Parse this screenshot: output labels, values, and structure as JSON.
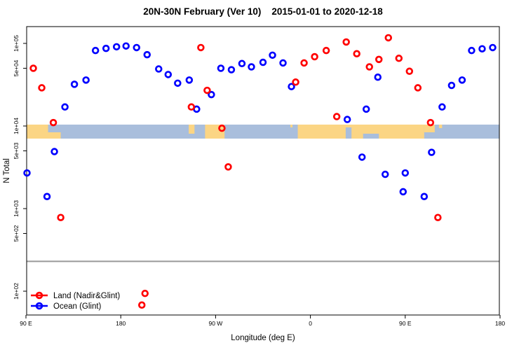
{
  "title": "20N-30N February (Ver 10)    2015-01-01 to 2020-12-18",
  "chart_data": {
    "type": "scatter",
    "title": "20N-30N February (Ver 10)    2015-01-01 to 2020-12-18",
    "xlabel": "Longitude (deg E)",
    "ylabel": "N Total",
    "x_axis": {
      "range": [
        90,
        540
      ],
      "ticks": [
        {
          "pos": 90,
          "label": "90 E"
        },
        {
          "pos": 180,
          "label": "180"
        },
        {
          "pos": 270,
          "label": "90 W"
        },
        {
          "pos": 360,
          "label": "0"
        },
        {
          "pos": 450,
          "label": "90 E"
        },
        {
          "pos": 540,
          "label": "180"
        }
      ]
    },
    "y_axis": {
      "scale": "log",
      "range": [
        52,
        160000
      ],
      "ticks": [
        {
          "value": 100000,
          "label": "1e+05"
        },
        {
          "value": 50000,
          "label": "5e+04"
        },
        {
          "value": 10000,
          "label": "1e+04"
        },
        {
          "value": 5000,
          "label": "5e+03"
        },
        {
          "value": 1000,
          "label": "1e+03"
        },
        {
          "value": 500,
          "label": "5e+02"
        },
        {
          "value": 100,
          "label": "1e+02"
        }
      ]
    },
    "grid": false,
    "legend_position": "bottom-left",
    "series": [
      {
        "name": "Land (Nadir&Glint)",
        "color": "#ff0000",
        "points": [
          [
            97,
            50000
          ],
          [
            105,
            29000
          ],
          [
            116,
            11000
          ],
          [
            123,
            780
          ],
          [
            200,
            68
          ],
          [
            203,
            94
          ],
          [
            247,
            17000
          ],
          [
            256,
            89000
          ],
          [
            262,
            27000
          ],
          [
            276,
            9400
          ],
          [
            282,
            3200
          ],
          [
            346,
            34000
          ],
          [
            354,
            58000
          ],
          [
            364,
            69000
          ],
          [
            375,
            82000
          ],
          [
            385,
            13000
          ],
          [
            394,
            104000
          ],
          [
            404,
            75000
          ],
          [
            416,
            52000
          ],
          [
            425,
            64000
          ],
          [
            434,
            117000
          ],
          [
            444,
            66000
          ],
          [
            454,
            46000
          ],
          [
            462,
            29000
          ],
          [
            474,
            11000
          ],
          [
            481,
            780
          ]
        ]
      },
      {
        "name": "Ocean (Glint)",
        "color": "#0000ff",
        "points": [
          [
            91,
            2700
          ],
          [
            110,
            1400
          ],
          [
            117,
            4900
          ],
          [
            127,
            17000
          ],
          [
            136,
            32000
          ],
          [
            147,
            36000
          ],
          [
            156,
            82000
          ],
          [
            166,
            87000
          ],
          [
            176,
            91000
          ],
          [
            185,
            93000
          ],
          [
            195,
            89000
          ],
          [
            205,
            73000
          ],
          [
            216,
            49000
          ],
          [
            225,
            42000
          ],
          [
            234,
            33000
          ],
          [
            245,
            36000
          ],
          [
            252,
            16000
          ],
          [
            266,
            24000
          ],
          [
            275,
            50000
          ],
          [
            285,
            48000
          ],
          [
            295,
            57000
          ],
          [
            304,
            52000
          ],
          [
            315,
            59000
          ],
          [
            324,
            72000
          ],
          [
            334,
            58000
          ],
          [
            342,
            30000
          ],
          [
            395,
            12000
          ],
          [
            409,
            4200
          ],
          [
            413,
            16000
          ],
          [
            424,
            39000
          ],
          [
            431,
            2600
          ],
          [
            448,
            1600
          ],
          [
            450,
            2700
          ],
          [
            468,
            1400
          ],
          [
            475,
            4800
          ],
          [
            485,
            17000
          ],
          [
            494,
            31000
          ],
          [
            504,
            36000
          ],
          [
            513,
            82000
          ],
          [
            523,
            86000
          ],
          [
            533,
            89000
          ]
        ]
      }
    ],
    "reference_line": {
      "value": 230,
      "color": "#999999"
    },
    "map_strip": {
      "center_value": 10000,
      "ocean_color": "#a9bedc",
      "land_color": "#fbd584",
      "land_segments": [
        {
          "lon": [
            90,
            111
          ],
          "part": "full",
          "frac": 1
        },
        {
          "lon": [
            109,
            123
          ],
          "part": "bottom",
          "frac": 0.45
        },
        {
          "lon": [
            244.5,
            250
          ],
          "part": "top",
          "frac": 0.65
        },
        {
          "lon": [
            260,
            278.5
          ],
          "part": "full",
          "frac": 1
        },
        {
          "lon": [
            341,
            343
          ],
          "part": "top",
          "frac": 0.2
        },
        {
          "lon": [
            348,
            468
          ],
          "part": "full",
          "frac": 1
        },
        {
          "lon": [
            468,
            478
          ],
          "part": "top",
          "frac": 0.55
        },
        {
          "lon": [
            482,
            485
          ],
          "part": "top",
          "frac": 0.25
        }
      ],
      "sea_cutouts": [
        {
          "lon": [
            393.5,
            399
          ],
          "part": "bottom",
          "frac": 0.8
        },
        {
          "lon": [
            410,
            425
          ],
          "part": "bottom",
          "frac": 0.35
        }
      ]
    }
  },
  "legend": {
    "items": [
      {
        "label": "Land (Nadir&Glint)",
        "color": "#ff0000"
      },
      {
        "label": "Ocean (Glint)",
        "color": "#0000ff"
      }
    ]
  }
}
